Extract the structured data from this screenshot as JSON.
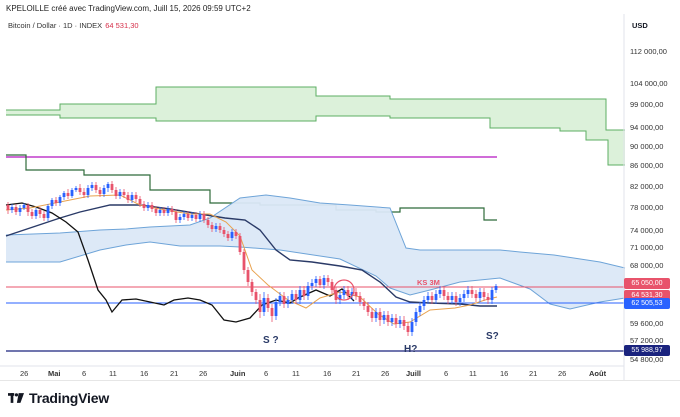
{
  "header": {
    "attribution": "KPELOILLE créé avec TradingView.com, Juill 15, 2026 09:59 UTC+2",
    "symbol": "Bitcoin / Dollar · 1D · INDEX",
    "last_value": "64 531,30"
  },
  "price_axis": {
    "currency": "USD",
    "labels": [
      "112 000,00",
      "104 000,00",
      "99 000,00",
      "94 000,00",
      "90 000,00",
      "86 000,00",
      "82 000,00",
      "78 000,00",
      "74 000,00",
      "71 000,00",
      "68 000,00",
      "59 600,00",
      "57 200,00",
      "54 800,00"
    ],
    "badges": [
      {
        "text": "65 050,00",
        "color": "#e8536b"
      },
      {
        "text": "64 531,30",
        "color": "#e8536b"
      },
      {
        "text": "62 505,53",
        "color": "#2962ff"
      },
      {
        "text": "55 988,97",
        "color": "#1a237e"
      }
    ]
  },
  "time_axis": {
    "labels": [
      "26",
      "Mai",
      "6",
      "11",
      "16",
      "21",
      "26",
      "Juin",
      "6",
      "11",
      "16",
      "21",
      "26",
      "Juill",
      "6",
      "11",
      "16",
      "21",
      "26",
      "Août"
    ]
  },
  "annotations": {
    "left_shoulder": "S ?",
    "head": "H?",
    "right_shoulder": "S?",
    "level": "KS 3M"
  },
  "colors": {
    "kumo_top": "#5cae63",
    "kumo_top_fill": "#d8efd6",
    "kumo_bottom": "#6ea4d8",
    "kumo_bottom_fill": "#dbe8f7",
    "magenta_line": "#c03ccc",
    "kijun": "#2a3a67",
    "chikou": "#111111",
    "tenkan": "#e8a24e",
    "bull_candle": "#2962ff",
    "bear_candle": "#e8536b",
    "level_red": "#e8536b",
    "level_blue": "#2962ff",
    "level_navy": "#1a237e"
  },
  "footer": {
    "brand": "TradingView"
  }
}
